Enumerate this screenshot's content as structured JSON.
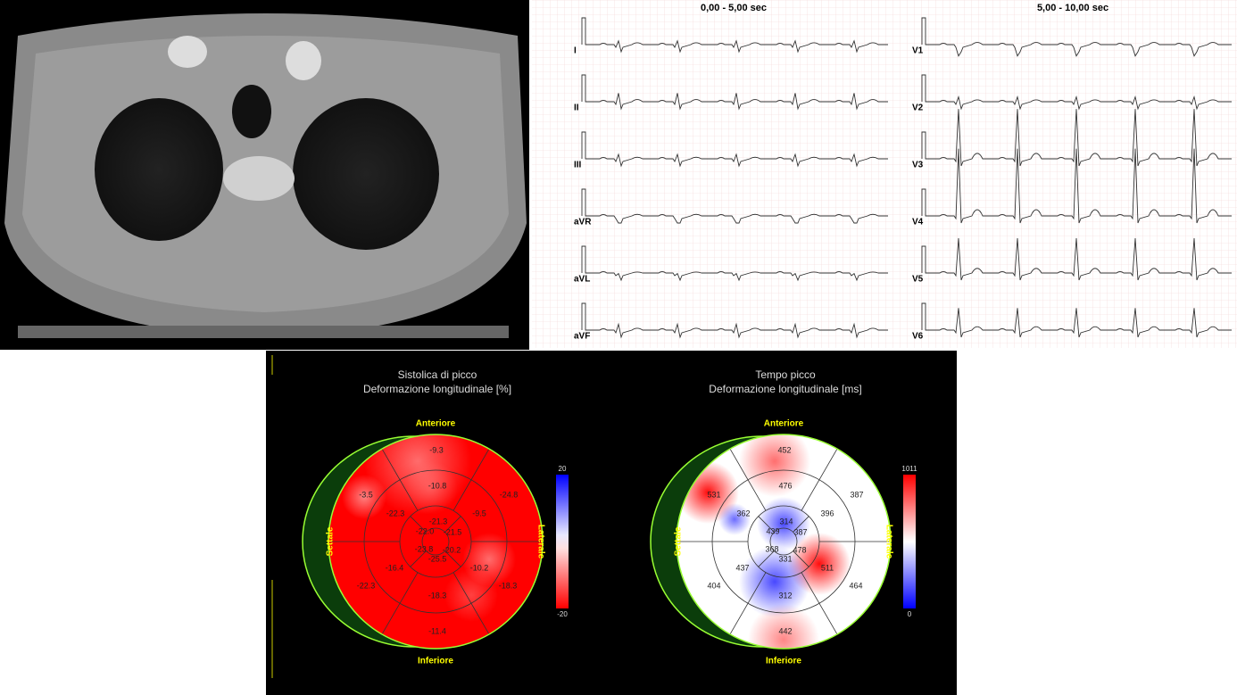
{
  "ecg": {
    "headers": [
      "0,00 - 5,00 sec",
      "5,00 - 10,00 sec"
    ],
    "leads_left": [
      "I",
      "II",
      "III",
      "aVR",
      "aVL",
      "aVF"
    ],
    "leads_right": [
      "V1",
      "V2",
      "V3",
      "V4",
      "V5",
      "V6"
    ]
  },
  "bullseye": [
    {
      "title": [
        "Sistolica di picco",
        "Deformazione longitudinale [%]"
      ],
      "labels": {
        "top": "Anteriore",
        "bottom": "Inferiore",
        "left": "Settale",
        "right": "Laterale"
      },
      "segments": [
        "-9.3",
        "-10.8",
        "-3.5",
        "-22.3",
        "-24.8",
        "-9.5",
        "-21.3",
        "-22.0",
        "-21.5",
        "-23.8",
        "-20.2",
        "-25.5",
        "-16.4",
        "-10.2",
        "-22.3",
        "-18.3",
        "-18.3",
        "-11.4"
      ],
      "scale": {
        "max": "20",
        "min": "-20"
      }
    },
    {
      "title": [
        "Tempo picco",
        "Deformazione longitudinale [ms]"
      ],
      "labels": {
        "top": "Anteriore",
        "bottom": "Inferiore",
        "left": "Settale",
        "right": "Laterale"
      },
      "segments": [
        "452",
        "476",
        "531",
        "362",
        "387",
        "396",
        "314",
        "439",
        "387",
        "368",
        "478",
        "331",
        "437",
        "511",
        "404",
        "464",
        "312",
        "442"
      ],
      "scale": {
        "max": "1011",
        "min": "0"
      }
    }
  ]
}
